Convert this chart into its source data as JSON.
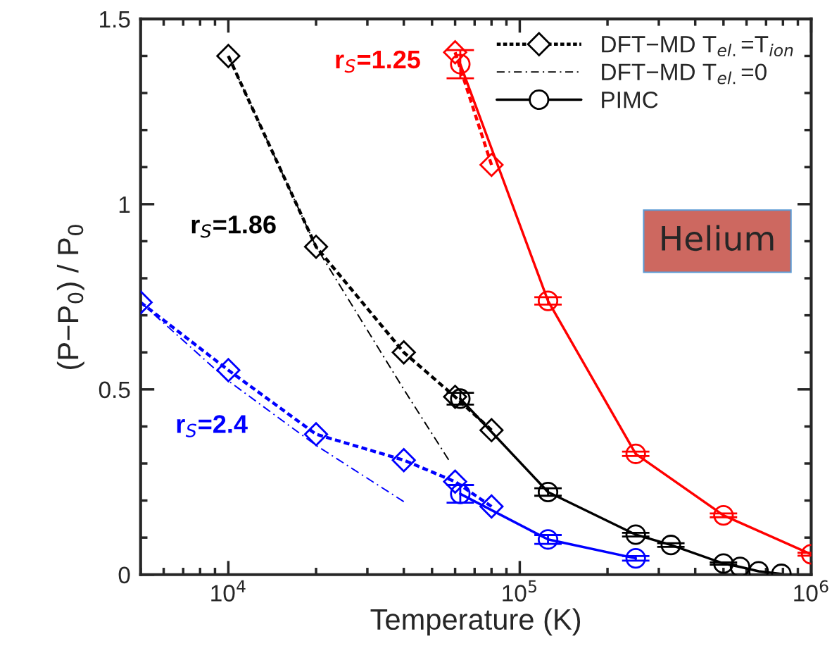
{
  "chart_data": {
    "type": "line",
    "xlabel": "Temperature (K)",
    "ylabel": "(P−P$_{0}$) / P$_{0}$",
    "log": "x",
    "xlim": [
      5000,
      1000000
    ],
    "xticks": [
      {
        "value": 10000,
        "label": "10$^{4}$"
      },
      {
        "value": 100000,
        "label": "10$^{5}$"
      },
      {
        "value": 1000000,
        "label": "10$^{6}$"
      }
    ],
    "ylim": [
      0,
      1.5
    ],
    "yticks": [
      0,
      0.5,
      1,
      1.5
    ],
    "grid": false,
    "legend": "top right",
    "series": [
      {
        "name": "DFT−MD T$_{el.}$=T$_{ion}$",
        "color": "#000000",
        "marker": "diamond",
        "line_style": "dashed",
        "x": [
          10000,
          20000,
          40000,
          60000,
          80000
        ],
        "values": [
          1.4,
          0.885,
          0.6,
          0.48,
          0.39
        ]
      },
      {
        "name": "DFT−MD T$_{el.}$=0",
        "color": "#000000",
        "marker": "none",
        "line_style": "dashdot",
        "x": [
          10000,
          20000,
          40000,
          57000
        ],
        "values": [
          1.4,
          0.885,
          0.5,
          0.31
        ]
      },
      {
        "name": "PIMC",
        "color": "#000000",
        "marker": "circle",
        "line_style": "solid",
        "x": [
          62500,
          125000,
          250000,
          330000,
          500000,
          570000,
          660000,
          790000
        ],
        "values": [
          0.475,
          0.223,
          0.108,
          0.08,
          0.03,
          0.021,
          0.009,
          0.002
        ],
        "errors": [
          0.016,
          0.01,
          0.005,
          0.005,
          0.003,
          null,
          null,
          null
        ]
      },
      {
        "color": "#0000ff",
        "marker": "diamond",
        "line_style": "dashed",
        "x": [
          5000,
          10000,
          20000,
          40000,
          60000,
          80000
        ],
        "values": [
          0.735,
          0.552,
          0.379,
          0.309,
          0.251,
          0.184
        ]
      },
      {
        "color": "#0000ff",
        "marker": "none",
        "line_style": "dashdot",
        "x": [
          5000,
          10000,
          20000,
          40000
        ],
        "values": [
          0.735,
          0.523,
          0.349,
          0.197
        ]
      },
      {
        "color": "#0000ff",
        "marker": "circle",
        "line_style": "solid",
        "x": [
          62500,
          125000,
          250000
        ],
        "values": [
          0.218,
          0.095,
          0.044
        ],
        "errors": [
          0.024,
          0.012,
          0.006
        ]
      },
      {
        "color": "#ff0000",
        "marker": "diamond",
        "line_style": "dashed",
        "x": [
          60000,
          80000
        ],
        "values": [
          1.41,
          1.106
        ]
      },
      {
        "color": "#ff0000",
        "marker": "circle",
        "line_style": "solid",
        "x": [
          62500,
          125000,
          250000,
          500000,
          1000000
        ],
        "values": [
          1.378,
          0.739,
          0.326,
          0.16,
          0.055
        ],
        "errors": [
          0.038,
          0.01,
          0.006,
          0.005,
          0.004
        ]
      }
    ],
    "annotations": [
      "r$_{S}$=1.86",
      "r$_{S}$=2.4",
      "r$_{S}$=1.25",
      "Helium"
    ]
  }
}
